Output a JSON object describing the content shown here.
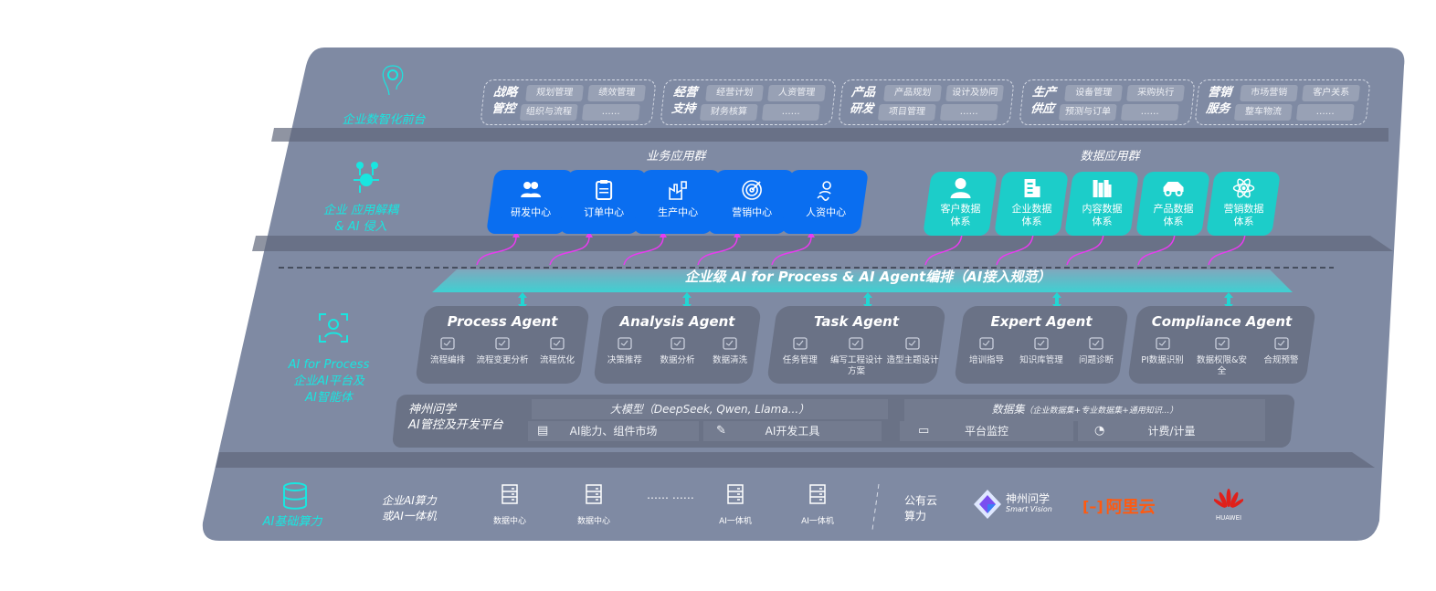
{
  "colors": {
    "panel": "#7f8aa3",
    "accent_cyan": "#19e6e0",
    "business_tile": "#0a6ef0",
    "data_tile": "#1ccdc9",
    "arrow": "#e83cf0",
    "card": "#6a7286"
  },
  "layers": {
    "front": {
      "label": "企业数智化前台",
      "icon": "brain-icon"
    },
    "apps": {
      "label_line1": "企业 应用解耦",
      "label_line2": "& AI 侵入",
      "icon": "molecule-icon"
    },
    "ai": {
      "label_line1": "AI for Process",
      "label_line2": "企业AI平台及",
      "label_line3": "AI智能体",
      "icon": "face-scan-icon"
    },
    "infra": {
      "label": "AI基础算力",
      "icon": "database-icon"
    }
  },
  "front_groups": [
    {
      "title": "战略管控",
      "items": [
        "规划管理",
        "绩效管理",
        "组织与流程",
        "……"
      ]
    },
    {
      "title": "经营支持",
      "items": [
        "经营计划",
        "人资管理",
        "财务核算",
        "……"
      ]
    },
    {
      "title": "产品研发",
      "items": [
        "产品规划",
        "设计及协同",
        "项目管理",
        "……"
      ]
    },
    {
      "title": "生产供应",
      "items": [
        "设备管理",
        "采购执行",
        "预测与订单",
        "……"
      ]
    },
    {
      "title": "营销服务",
      "items": [
        "市场营销",
        "客户关系",
        "整车物流",
        "……"
      ]
    }
  ],
  "business_apps": {
    "title": "业务应用群",
    "tiles": [
      {
        "label": "研发中心",
        "icon": "team-icon"
      },
      {
        "label": "订单中心",
        "icon": "clipboard-icon"
      },
      {
        "label": "生产中心",
        "icon": "factory-icon"
      },
      {
        "label": "营销中心",
        "icon": "target-icon"
      },
      {
        "label": "人资中心",
        "icon": "person-icon"
      }
    ]
  },
  "data_apps": {
    "title": "数据应用群",
    "tiles": [
      {
        "label": "客户数据体系",
        "icon": "user-icon"
      },
      {
        "label": "企业数据体系",
        "icon": "building-icon"
      },
      {
        "label": "内容数据体系",
        "icon": "books-icon"
      },
      {
        "label": "产品数据体系",
        "icon": "car-icon"
      },
      {
        "label": "营销数据体系",
        "icon": "atom-icon"
      }
    ]
  },
  "banner": "企业级 AI for Process & AI Agent编排（AI接入规范）",
  "agents": [
    {
      "name": "Process Agent",
      "items": [
        "流程编排",
        "流程变更分析",
        "流程优化"
      ]
    },
    {
      "name": "Analysis Agent",
      "items": [
        "决策推荐",
        "数据分析",
        "数据清洗"
      ]
    },
    {
      "name": "Task Agent",
      "items": [
        "任务管理",
        "编写工程设计方案",
        "造型主题设计"
      ]
    },
    {
      "name": "Expert Agent",
      "items": [
        "培训指导",
        "知识库管理",
        "问题诊断"
      ]
    },
    {
      "name": "Compliance Agent",
      "items": [
        "PI数据识别",
        "数据权限&安全",
        "合规预警"
      ]
    }
  ],
  "platform": {
    "title_line1": "神州问学",
    "title_line2": "AI管控及开发平台",
    "models": "大模型（DeepSeek, Qwen, Llama...）",
    "datasets": "数据集",
    "datasets_note": "（企业数据集+专业数据集+通用知识...）",
    "cells": [
      "AI能力、组件市场",
      "AI开发工具",
      "平台监控",
      "计费/计量"
    ]
  },
  "infra": {
    "enterprise_line1": "企业AI算力",
    "enterprise_line2": "或AI一体机",
    "servers": [
      "数据中心",
      "数据中心",
      "AI一体机",
      "AI一体机"
    ],
    "ellipsis": "…… ……",
    "public_line1": "公有云",
    "public_line2": "算力",
    "vendors": [
      {
        "name": "神州问学",
        "sub": "Smart Vision"
      },
      {
        "name": "阿里云"
      },
      {
        "name": "HUAWEI"
      }
    ]
  }
}
